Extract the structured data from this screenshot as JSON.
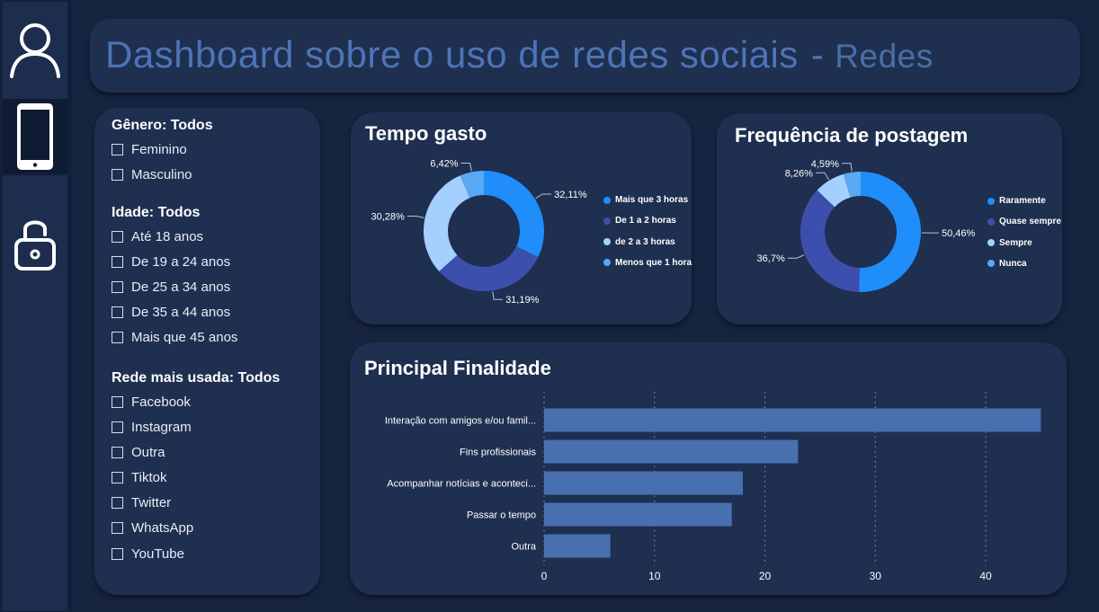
{
  "nav": {
    "items": [
      {
        "icon": "user-icon",
        "label": ""
      },
      {
        "icon": "phone-icon",
        "label": ""
      },
      {
        "icon": "lock-icon",
        "label": ""
      }
    ]
  },
  "header": {
    "title": "Dashboard sobre o uso de redes sociais",
    "separator": "-",
    "subtitle": "Redes"
  },
  "filters": {
    "genero": {
      "heading": "Gênero: Todos",
      "options": [
        "Feminino",
        "Masculino"
      ]
    },
    "idade": {
      "heading": "Idade: Todos",
      "options": [
        "Até 18 anos",
        "De 19 a 24 anos",
        "De 25 a 34 anos",
        "De 35 a 44 anos",
        "Mais que 45 anos"
      ]
    },
    "rede": {
      "heading": "Rede mais usada: Todos",
      "options": [
        "Facebook",
        "Instagram",
        "Outra",
        "Tiktok",
        "Twitter",
        "WhatsApp",
        "YouTube"
      ]
    }
  },
  "chart_data": [
    {
      "type": "pie",
      "title": "Tempo gasto",
      "labels": [
        "Mais que 3 horas",
        "De 1 a 2 horas",
        "de 2 a 3 horas",
        "Menos que 1 hora"
      ],
      "values": [
        32.11,
        31.19,
        30.28,
        6.42
      ],
      "data_labels": [
        "32,11%",
        "31,19%",
        "30,28%",
        "6,42%"
      ],
      "colors": [
        "#1f8efa",
        "#3d4fad",
        "#a5cffd",
        "#5aa7f4"
      ],
      "donut": true,
      "legend_position": "right"
    },
    {
      "type": "pie",
      "title": "Frequência de postagem",
      "labels": [
        "Raramente",
        "Quase sempre",
        "Sempre",
        "Nunca"
      ],
      "values": [
        50.46,
        36.7,
        8.26,
        4.59
      ],
      "data_labels": [
        "50,46%",
        "36,7%",
        "8,26%",
        "4,59%"
      ],
      "colors": [
        "#1f8efa",
        "#3d4fad",
        "#a5cffd",
        "#5aa7f4"
      ],
      "donut": true,
      "legend_position": "right"
    },
    {
      "type": "bar",
      "orientation": "horizontal",
      "title": "Principal Finalidade",
      "categories": [
        "Interação com amigos e/ou famil...",
        "Fins profissionais",
        "Acompanhar notícias e aconteci...",
        "Passar o tempo",
        "Outra"
      ],
      "values": [
        45,
        23,
        18,
        17,
        6
      ],
      "xlim": [
        0,
        45
      ],
      "ticks": [
        0,
        10,
        20,
        30,
        40
      ],
      "grid": true,
      "color": "#4870b1"
    }
  ]
}
